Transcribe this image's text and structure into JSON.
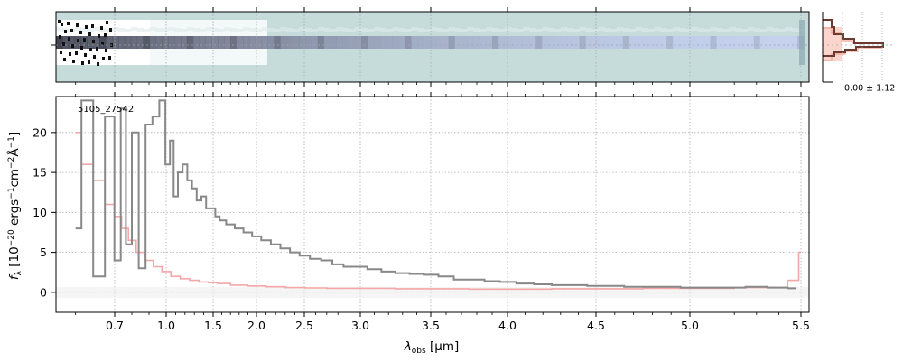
{
  "chart_data": {
    "type": "line",
    "object_label": "5105_27542",
    "xlabel": "λ_obs [μm]",
    "ylabel": "f_λ [10^-20 ergs^-1 cm^-2 Å^-1]",
    "x_ticks": [
      "0.7",
      "1.0",
      "1.5",
      "2.0",
      "2.5",
      "3.0",
      "3.5",
      "4.0",
      "4.5",
      "5.0",
      "5.5"
    ],
    "y_ticks": [
      0,
      5,
      10,
      15,
      20
    ],
    "ylim": [
      -2.5,
      24.5
    ],
    "xlim": [
      0.55,
      5.52
    ],
    "grid": true,
    "series": [
      {
        "role": "spectrum",
        "color": "#888888",
        "x": [
          0.6,
          0.63,
          0.66,
          0.69,
          0.72,
          0.75,
          0.78,
          0.82,
          0.86,
          0.9,
          0.94,
          0.98,
          1.02,
          1.06,
          1.1,
          1.15,
          1.2,
          1.25,
          1.3,
          1.35,
          1.4,
          1.45,
          1.5,
          1.55,
          1.6,
          1.7,
          1.8,
          1.9,
          2.0,
          2.1,
          2.2,
          2.3,
          2.4,
          2.5,
          2.6,
          2.7,
          2.8,
          2.9,
          3.0,
          3.1,
          3.2,
          3.3,
          3.4,
          3.5,
          3.6,
          3.7,
          3.8,
          3.9,
          4.0,
          4.1,
          4.2,
          4.3,
          4.4,
          4.5,
          4.6,
          4.7,
          4.8,
          4.9,
          5.0,
          5.1,
          5.2,
          5.3,
          5.4,
          5.48
        ],
        "y": [
          8,
          24,
          2,
          22,
          4,
          23,
          6,
          20,
          3,
          21,
          22,
          24,
          16,
          19,
          12,
          15,
          16,
          14,
          13,
          11.5,
          12,
          10.5,
          10.5,
          9.5,
          9.0,
          8.5,
          8.0,
          7.5,
          7.0,
          6.5,
          6.0,
          5.5,
          5.0,
          4.6,
          4.2,
          4.0,
          3.5,
          3.2,
          3.2,
          2.9,
          2.6,
          2.4,
          2.3,
          2.2,
          2.0,
          1.6,
          1.6,
          1.4,
          1.3,
          1.1,
          1.0,
          0.9,
          0.9,
          0.8,
          0.8,
          0.7,
          0.7,
          0.7,
          0.6,
          0.6,
          0.6,
          0.7,
          0.6,
          0.5
        ]
      },
      {
        "role": "model",
        "color": "#f4a7a7",
        "x": [
          0.6,
          0.63,
          0.66,
          0.69,
          0.72,
          0.76,
          0.8,
          0.85,
          0.9,
          0.95,
          1.0,
          1.1,
          1.2,
          1.3,
          1.4,
          1.5,
          1.6,
          1.8,
          2.0,
          2.2,
          2.4,
          2.6,
          2.8,
          3.0,
          3.5,
          4.0,
          4.5,
          5.0,
          5.4,
          5.48,
          5.5
        ],
        "y": [
          20,
          16,
          14,
          11,
          9.5,
          8,
          6.5,
          5,
          4,
          3.2,
          2.6,
          2.0,
          1.7,
          1.5,
          1.3,
          1.2,
          1.1,
          0.9,
          0.8,
          0.7,
          0.6,
          0.55,
          0.5,
          0.5,
          0.45,
          0.4,
          0.45,
          0.5,
          0.6,
          1.5,
          5.0
        ]
      }
    ],
    "profile_annotation": "0.00 ± 1.12"
  }
}
